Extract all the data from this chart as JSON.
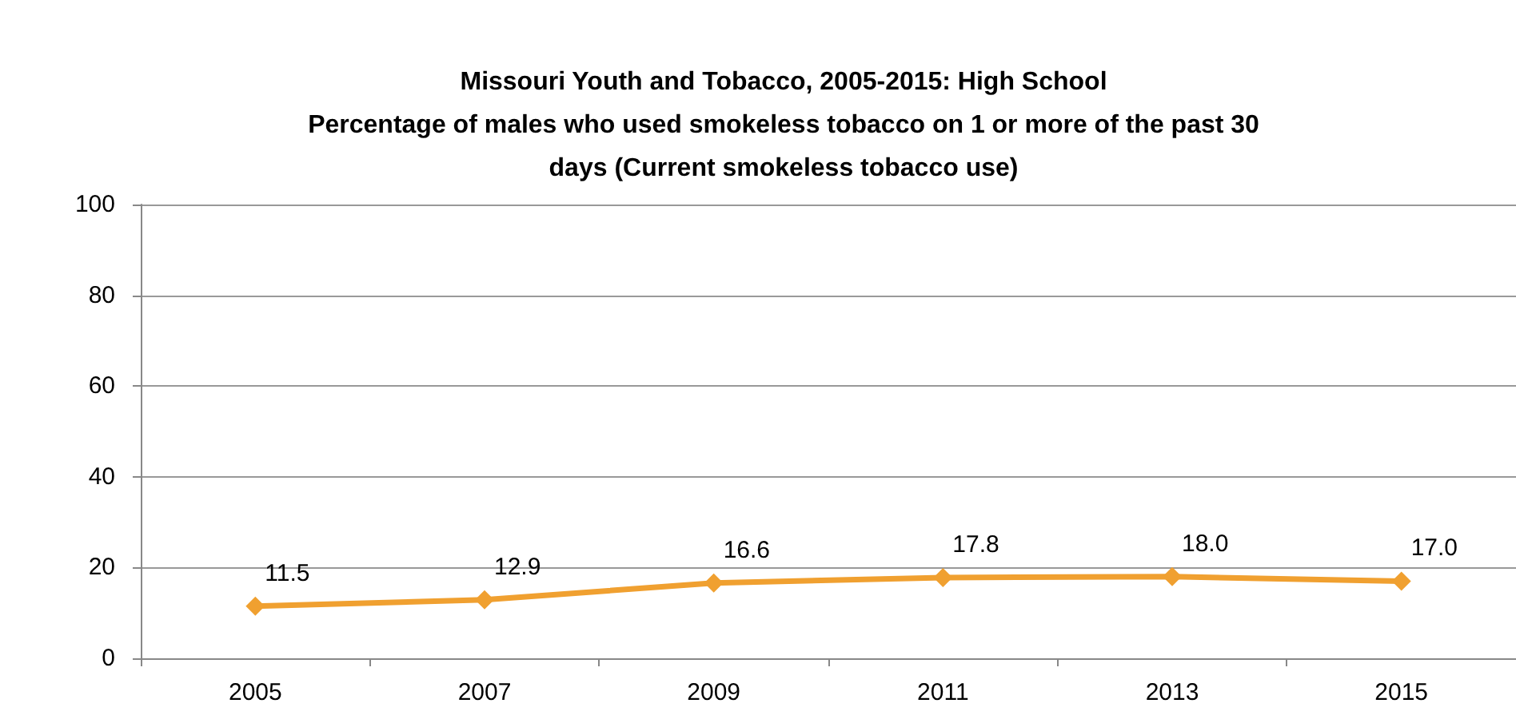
{
  "chart_data": {
    "type": "line",
    "title": "Missouri Youth and Tobacco, 2005-2015: High School\nPercentage of males who used smokeless tobacco on 1 or more of the past 30\ndays (Current smokeless tobacco use)",
    "categories": [
      "2005",
      "2007",
      "2009",
      "2011",
      "2013",
      "2015"
    ],
    "series": [
      {
        "color": "#f0a030",
        "values": [
          11.5,
          12.9,
          16.6,
          17.8,
          18.0,
          17.0
        ],
        "value_labels": [
          "11.5",
          "12.9",
          "16.6",
          "17.8",
          "18.0",
          "17.0"
        ]
      }
    ],
    "ylim": [
      0,
      100
    ],
    "yticks": [
      0,
      20,
      40,
      60,
      80,
      100
    ],
    "grid": "y",
    "marker": "diamond",
    "line_style": "solid"
  }
}
